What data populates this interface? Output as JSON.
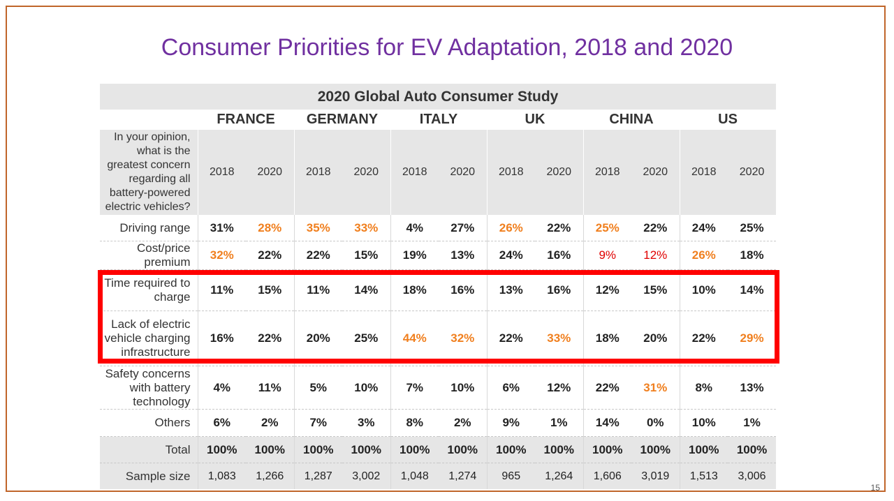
{
  "slide": {
    "title": "Consumer Priorities for EV Adaptation, 2018 and 2020",
    "page_number": "15"
  },
  "table": {
    "study_title": "2020 Global Auto Consumer Study",
    "countries": [
      "FRANCE",
      "GERMANY",
      "ITALY",
      "UK",
      "CHINA",
      "US"
    ],
    "question": "In your opinion, what is the greatest concern regarding all battery-powered electric vehicles?",
    "years": [
      "2018",
      "2020",
      "2018",
      "2020",
      "2018",
      "2020",
      "2018",
      "2020",
      "2018",
      "2020",
      "2018",
      "2020"
    ],
    "rows": [
      {
        "label": "Driving range",
        "values": [
          "31%",
          "28%",
          "35%",
          "33%",
          "4%",
          "27%",
          "26%",
          "22%",
          "25%",
          "22%",
          "24%",
          "25%"
        ]
      },
      {
        "label": "Cost/price premium",
        "values": [
          "32%",
          "22%",
          "22%",
          "15%",
          "19%",
          "13%",
          "24%",
          "16%",
          "9%",
          "12%",
          "26%",
          "18%"
        ]
      },
      {
        "label": "Time required to charge",
        "values": [
          "11%",
          "15%",
          "11%",
          "14%",
          "18%",
          "16%",
          "13%",
          "16%",
          "12%",
          "15%",
          "10%",
          "14%"
        ]
      },
      {
        "label": "Lack of electric vehicle charging infrastructure",
        "values": [
          "16%",
          "22%",
          "20%",
          "25%",
          "44%",
          "32%",
          "22%",
          "33%",
          "18%",
          "20%",
          "22%",
          "29%"
        ]
      },
      {
        "label": "Safety concerns with battery technology",
        "values": [
          "4%",
          "11%",
          "5%",
          "10%",
          "7%",
          "10%",
          "6%",
          "12%",
          "22%",
          "31%",
          "8%",
          "13%"
        ]
      },
      {
        "label": "Others",
        "values": [
          "6%",
          "2%",
          "7%",
          "3%",
          "8%",
          "2%",
          "9%",
          "1%",
          "14%",
          "0%",
          "10%",
          "1%"
        ]
      },
      {
        "label": "Total",
        "values": [
          "100%",
          "100%",
          "100%",
          "100%",
          "100%",
          "100%",
          "100%",
          "100%",
          "100%",
          "100%",
          "100%",
          "100%"
        ]
      },
      {
        "label": "Sample size",
        "values": [
          "1,083",
          "1,266",
          "1,287",
          "3,002",
          "1,048",
          "1,274",
          "965",
          "1,264",
          "1,606",
          "3,019",
          "1,513",
          "3,006"
        ]
      }
    ]
  },
  "colors": {
    "title": "#7030a0",
    "highlight_orange": "#f07f1e",
    "highlight_red": "#e00000",
    "frame": "#c0652a",
    "emphasis_box": "#ff0000"
  }
}
